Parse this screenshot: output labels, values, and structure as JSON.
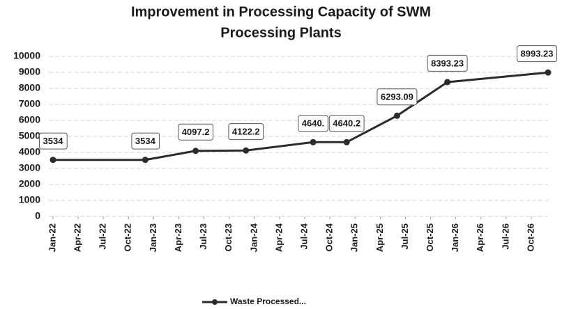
{
  "chart_data": {
    "type": "line",
    "title": [
      "Improvement in Processing Capacity of SWM",
      "Processing Plants"
    ],
    "x": [
      "2022-01",
      "2022-12",
      "2023-06",
      "2023-12",
      "2024-08",
      "2024-12",
      "2025-06",
      "2025-12",
      "2026-12"
    ],
    "xlim": [
      "2022-01",
      "2026-12"
    ],
    "xticks": [
      {
        "value": "2022-01",
        "label": "Jan-22"
      },
      {
        "value": "2022-04",
        "label": "Apr-22"
      },
      {
        "value": "2022-07",
        "label": "Jul-22"
      },
      {
        "value": "2022-10",
        "label": "Oct-22"
      },
      {
        "value": "2023-01",
        "label": "Jan-23"
      },
      {
        "value": "2023-04",
        "label": "Apr-23"
      },
      {
        "value": "2023-07",
        "label": "Jul-23"
      },
      {
        "value": "2023-10",
        "label": "Oct-23"
      },
      {
        "value": "2024-01",
        "label": "Jan-24"
      },
      {
        "value": "2024-04",
        "label": "Apr-24"
      },
      {
        "value": "2024-07",
        "label": "Jul-24"
      },
      {
        "value": "2024-10",
        "label": "Oct-24"
      },
      {
        "value": "2025-01",
        "label": "Jan-25"
      },
      {
        "value": "2025-04",
        "label": "Apr-25"
      },
      {
        "value": "2025-07",
        "label": "Jul-25"
      },
      {
        "value": "2025-10",
        "label": "Oct-25"
      },
      {
        "value": "2026-01",
        "label": "Jan-26"
      },
      {
        "value": "2026-04",
        "label": "Apr-26"
      },
      {
        "value": "2026-07",
        "label": "Jul-26"
      },
      {
        "value": "2026-10",
        "label": "Oct-26"
      }
    ],
    "ylim": [
      0,
      10000
    ],
    "yticks": [
      0,
      1000,
      2000,
      3000,
      4000,
      5000,
      6000,
      7000,
      8000,
      9000,
      10000
    ],
    "grid": true,
    "legend": "bottom",
    "series": [
      {
        "name": "Waste Processed...",
        "color": "#2b2b2b",
        "values": [
          3534,
          3534,
          4097.2,
          4122.2,
          4640.2,
          4640.2,
          6293.09,
          8393.23,
          8993.23
        ],
        "value_labels": [
          "3534",
          "3534",
          "4097.2",
          "4122.2",
          "4640.",
          "4640.2",
          "6293.09",
          "8393.23",
          "8993.23"
        ]
      }
    ]
  }
}
